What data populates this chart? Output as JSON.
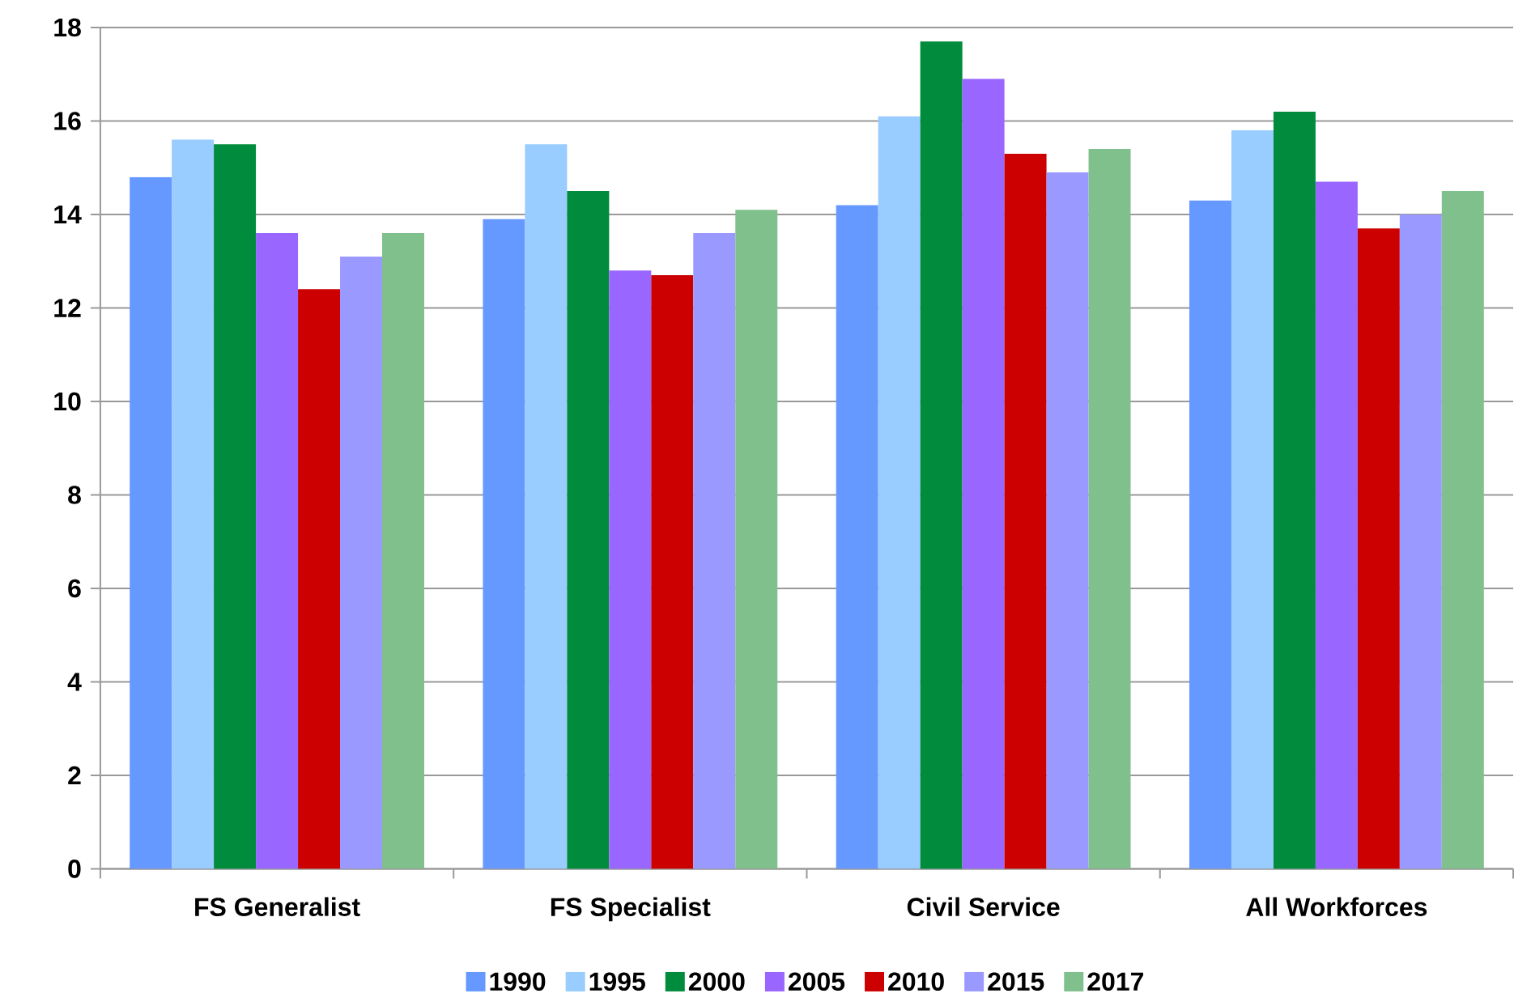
{
  "chart_data": {
    "type": "bar",
    "categories": [
      "FS Generalist",
      "FS Specialist",
      "Civil Service",
      "All Workforces"
    ],
    "series": [
      {
        "name": "1990",
        "color": "#6699ff",
        "values": [
          14.8,
          13.9,
          14.2,
          14.3
        ]
      },
      {
        "name": "1995",
        "color": "#99ccff",
        "values": [
          15.6,
          15.5,
          16.1,
          15.8
        ]
      },
      {
        "name": "2000",
        "color": "#008c3c",
        "values": [
          15.5,
          14.5,
          17.7,
          16.2
        ]
      },
      {
        "name": "2005",
        "color": "#9966ff",
        "values": [
          13.6,
          12.8,
          16.9,
          14.7
        ]
      },
      {
        "name": "2010",
        "color": "#cc0000",
        "values": [
          12.4,
          12.7,
          15.3,
          13.7
        ]
      },
      {
        "name": "2015",
        "color": "#9999ff",
        "values": [
          13.1,
          13.6,
          14.9,
          14.0
        ]
      },
      {
        "name": "2017",
        "color": "#80c08c",
        "values": [
          13.6,
          14.1,
          15.4,
          14.5
        ]
      }
    ],
    "ylim": [
      0,
      18
    ],
    "yticks": [
      0,
      2,
      4,
      6,
      8,
      10,
      12,
      14,
      16,
      18
    ],
    "grid": "y",
    "legend": "bottom"
  }
}
